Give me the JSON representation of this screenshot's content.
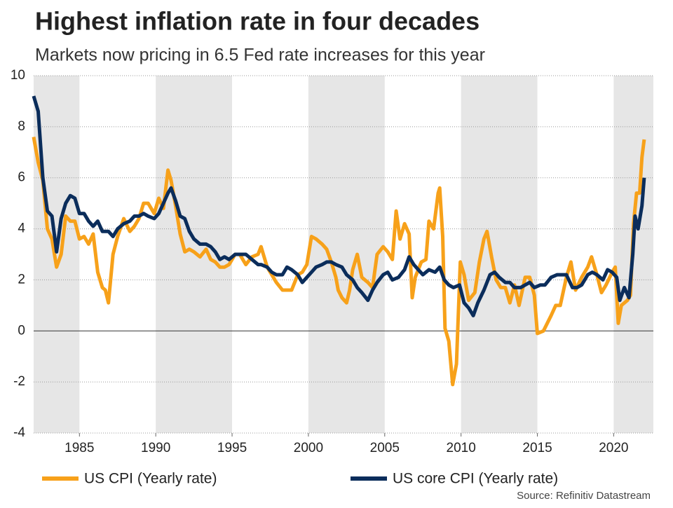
{
  "chart_data": {
    "type": "line",
    "title": "Highest inflation rate in four decades",
    "subtitle": "Markets now pricing in 6.5 Fed rate increases for this year",
    "source": "Source: Refinitiv Datastream",
    "xlim": [
      1982,
      2022.6
    ],
    "ylim": [
      -4,
      10
    ],
    "xticks": [
      1985,
      1990,
      1995,
      2000,
      2005,
      2010,
      2015,
      2020
    ],
    "yticks": [
      -4,
      -2,
      0,
      2,
      4,
      6,
      8,
      10
    ],
    "grid": true,
    "series": [
      {
        "name": "US CPI (Yearly rate)",
        "color": "#f7a11a",
        "x": [
          1982.0,
          1982.3,
          1982.6,
          1982.9,
          1983.2,
          1983.5,
          1983.8,
          1984.1,
          1984.4,
          1984.7,
          1985.0,
          1985.3,
          1985.6,
          1985.9,
          1986.2,
          1986.5,
          1986.7,
          1986.9,
          1987.2,
          1987.5,
          1987.9,
          1988.3,
          1988.6,
          1988.9,
          1989.2,
          1989.5,
          1989.9,
          1990.2,
          1990.5,
          1990.8,
          1991.0,
          1991.3,
          1991.6,
          1991.9,
          1992.2,
          1992.5,
          1992.9,
          1993.3,
          1993.6,
          1993.9,
          1994.2,
          1994.5,
          1994.8,
          1995.2,
          1995.5,
          1995.9,
          1996.3,
          1996.7,
          1996.9,
          1997.3,
          1997.6,
          1997.9,
          1998.3,
          1998.6,
          1998.9,
          1999.3,
          1999.6,
          1999.9,
          2000.2,
          2000.5,
          2000.9,
          2001.2,
          2001.5,
          2001.8,
          2001.95,
          2002.2,
          2002.5,
          2002.7,
          2002.9,
          2003.2,
          2003.5,
          2003.9,
          2004.2,
          2004.5,
          2004.9,
          2005.2,
          2005.5,
          2005.75,
          2006.0,
          2006.3,
          2006.6,
          2006.8,
          2007.0,
          2007.4,
          2007.7,
          2007.9,
          2008.2,
          2008.5,
          2008.6,
          2008.8,
          2008.95,
          2009.2,
          2009.45,
          2009.7,
          2009.95,
          2010.2,
          2010.5,
          2010.9,
          2011.2,
          2011.5,
          2011.7,
          2012.0,
          2012.3,
          2012.6,
          2012.9,
          2013.2,
          2013.5,
          2013.8,
          2014.2,
          2014.5,
          2014.8,
          2015.0,
          2015.4,
          2015.9,
          2016.2,
          2016.5,
          2016.9,
          2017.2,
          2017.5,
          2017.9,
          2018.3,
          2018.55,
          2018.9,
          2019.2,
          2019.5,
          2019.9,
          2020.1,
          2020.3,
          2020.5,
          2020.9,
          2021.1,
          2021.3,
          2021.5,
          2021.7,
          2021.85,
          2022.0
        ],
        "values": [
          7.6,
          6.6,
          5.9,
          4.0,
          3.6,
          2.5,
          3.0,
          4.5,
          4.3,
          4.3,
          3.6,
          3.7,
          3.4,
          3.8,
          2.3,
          1.7,
          1.6,
          1.1,
          3.0,
          3.7,
          4.4,
          3.9,
          4.1,
          4.4,
          5.0,
          5.0,
          4.6,
          5.2,
          4.8,
          6.3,
          5.9,
          4.9,
          3.8,
          3.1,
          3.2,
          3.1,
          2.9,
          3.2,
          2.8,
          2.7,
          2.5,
          2.5,
          2.6,
          3.0,
          3.0,
          2.6,
          2.9,
          3.0,
          3.3,
          2.5,
          2.2,
          1.9,
          1.6,
          1.6,
          1.6,
          2.2,
          2.3,
          2.6,
          3.7,
          3.6,
          3.4,
          3.2,
          2.7,
          2.1,
          1.6,
          1.3,
          1.1,
          1.6,
          2.4,
          3.0,
          2.1,
          1.9,
          1.7,
          3.0,
          3.3,
          3.1,
          2.8,
          4.7,
          3.6,
          4.2,
          3.8,
          1.3,
          2.1,
          2.7,
          2.8,
          4.3,
          4.0,
          5.4,
          5.6,
          3.7,
          0.1,
          -0.4,
          -2.1,
          -1.3,
          2.7,
          2.2,
          1.2,
          1.5,
          2.7,
          3.6,
          3.9,
          2.9,
          2.0,
          1.7,
          1.7,
          1.1,
          1.8,
          1.0,
          2.1,
          2.1,
          1.4,
          -0.1,
          0.0,
          0.6,
          1.0,
          1.0,
          2.1,
          2.7,
          1.6,
          2.1,
          2.5,
          2.9,
          2.2,
          1.5,
          1.8,
          2.3,
          2.5,
          0.3,
          1.0,
          1.2,
          1.4,
          4.2,
          5.4,
          5.4,
          6.8,
          7.5
        ]
      },
      {
        "name": "US core CPI (Yearly rate)",
        "color": "#0b2d5b",
        "x": [
          1982.0,
          1982.3,
          1982.6,
          1982.9,
          1983.2,
          1983.5,
          1983.8,
          1984.1,
          1984.4,
          1984.7,
          1985.0,
          1985.3,
          1985.6,
          1985.9,
          1986.2,
          1986.5,
          1986.9,
          1987.2,
          1987.5,
          1987.9,
          1988.3,
          1988.6,
          1988.9,
          1989.2,
          1989.5,
          1989.9,
          1990.2,
          1990.5,
          1990.8,
          1991.0,
          1991.3,
          1991.6,
          1991.9,
          1992.2,
          1992.5,
          1992.9,
          1993.3,
          1993.6,
          1993.9,
          1994.2,
          1994.5,
          1994.8,
          1995.2,
          1995.5,
          1995.9,
          1996.3,
          1996.7,
          1996.9,
          1997.3,
          1997.6,
          1997.9,
          1998.3,
          1998.6,
          1998.9,
          1999.3,
          1999.6,
          1999.9,
          2000.2,
          2000.5,
          2000.9,
          2001.2,
          2001.5,
          2001.8,
          2002.2,
          2002.5,
          2002.9,
          2003.2,
          2003.5,
          2003.9,
          2004.2,
          2004.5,
          2004.9,
          2005.2,
          2005.5,
          2005.9,
          2006.3,
          2006.6,
          2006.9,
          2007.2,
          2007.5,
          2007.9,
          2008.3,
          2008.6,
          2008.9,
          2009.2,
          2009.5,
          2009.9,
          2010.2,
          2010.5,
          2010.8,
          2011.1,
          2011.5,
          2011.9,
          2012.2,
          2012.5,
          2012.9,
          2013.2,
          2013.5,
          2013.9,
          2014.2,
          2014.5,
          2014.8,
          2015.2,
          2015.5,
          2015.9,
          2016.3,
          2016.6,
          2016.9,
          2017.3,
          2017.6,
          2017.9,
          2018.3,
          2018.6,
          2018.9,
          2019.3,
          2019.6,
          2019.9,
          2020.2,
          2020.4,
          2020.7,
          2021.0,
          2021.25,
          2021.4,
          2021.6,
          2021.85,
          2022.0
        ],
        "values": [
          9.2,
          8.6,
          6.0,
          4.7,
          4.5,
          3.1,
          4.4,
          5.0,
          5.3,
          5.2,
          4.6,
          4.6,
          4.3,
          4.1,
          4.3,
          3.9,
          3.9,
          3.7,
          4.0,
          4.2,
          4.3,
          4.5,
          4.5,
          4.6,
          4.5,
          4.4,
          4.6,
          5.0,
          5.4,
          5.6,
          5.1,
          4.5,
          4.4,
          3.9,
          3.6,
          3.4,
          3.4,
          3.3,
          3.1,
          2.8,
          2.9,
          2.8,
          3.0,
          3.0,
          3.0,
          2.8,
          2.6,
          2.6,
          2.5,
          2.3,
          2.2,
          2.2,
          2.5,
          2.4,
          2.2,
          1.9,
          2.1,
          2.3,
          2.5,
          2.6,
          2.7,
          2.7,
          2.6,
          2.5,
          2.2,
          2.0,
          1.7,
          1.5,
          1.2,
          1.6,
          1.9,
          2.2,
          2.3,
          2.0,
          2.1,
          2.4,
          2.9,
          2.6,
          2.4,
          2.2,
          2.4,
          2.3,
          2.5,
          2.0,
          1.8,
          1.7,
          1.8,
          1.1,
          0.9,
          0.6,
          1.1,
          1.6,
          2.2,
          2.3,
          2.1,
          1.9,
          1.9,
          1.7,
          1.7,
          1.8,
          1.9,
          1.7,
          1.8,
          1.8,
          2.1,
          2.2,
          2.2,
          2.2,
          1.7,
          1.7,
          1.8,
          2.2,
          2.3,
          2.2,
          2.0,
          2.4,
          2.3,
          2.1,
          1.2,
          1.7,
          1.3,
          3.0,
          4.5,
          4.0,
          4.9,
          6.0
        ]
      }
    ]
  }
}
